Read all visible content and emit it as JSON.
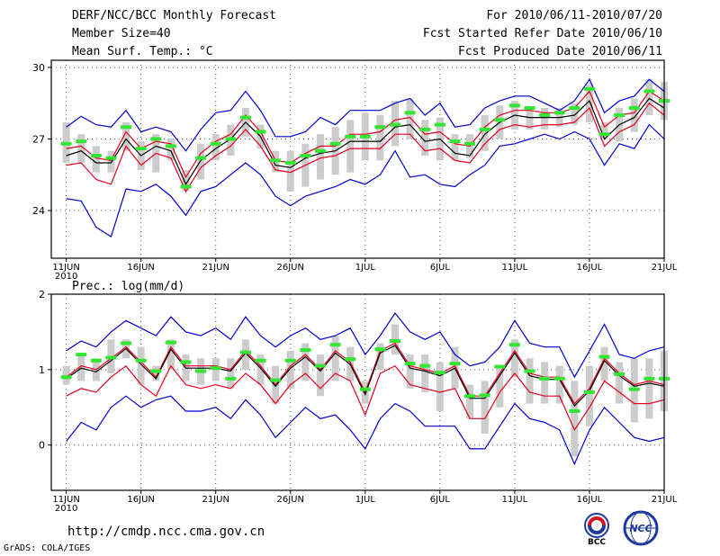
{
  "header": {
    "title": "DERF/NCC/BCC Monthly Forecast",
    "member_size": "Member Size=40",
    "panel1_label": "Mean Surf. Temp.: °C",
    "period": "For 2010/06/11-2010/07/20",
    "fcst_started": "Fcst Started Refer Date 2010/06/10",
    "fcst_produced": "Fcst Produced Date 2010/06/11"
  },
  "footer": {
    "url": "http://cmdp.ncc.cma.gov.cn",
    "grads": "GrADS: COLA/IGES",
    "logo_bcc": "BCC",
    "logo_ncc": "NCC"
  },
  "colors": {
    "mean": "#000000",
    "spread": "#e6001e",
    "extreme": "#0000d0",
    "box": "#cccccc",
    "marker": "#33e633"
  },
  "chart_data": [
    {
      "type": "line",
      "name": "temperature",
      "label": "Mean Surf. Temp.: °C",
      "x_tick_labels": [
        "11JUN",
        "16JUN",
        "21JUN",
        "26JUN",
        "1JUL",
        "6JUL",
        "11JUL",
        "16JUL",
        "21JUL"
      ],
      "x_tick_index": [
        0,
        5,
        10,
        15,
        20,
        25,
        30,
        35,
        40
      ],
      "year_label": "2010",
      "xlim": [
        -1,
        40
      ],
      "ylim": [
        22,
        30.3
      ],
      "yticks": [
        24,
        27,
        30
      ],
      "ytick_labels": [
        "24",
        "27",
        "30"
      ],
      "series": [
        {
          "name": "max",
          "values": [
            27.5,
            27.95,
            27.6,
            27.5,
            28.2,
            27.3,
            27.5,
            27.3,
            26.5,
            27.4,
            28.1,
            28.2,
            29.0,
            28.2,
            27.1,
            27.1,
            27.3,
            27.9,
            27.6,
            28.2,
            28.2,
            28.2,
            28.5,
            28.7,
            28.0,
            28.5,
            27.5,
            27.6,
            28.3,
            28.6,
            28.8,
            28.8,
            28.5,
            28.2,
            28.6,
            29.5,
            28.1,
            28.6,
            28.8,
            29.5,
            29.0
          ]
        },
        {
          "name": "mean_plus",
          "values": [
            26.6,
            26.7,
            26.2,
            26.1,
            27.3,
            26.6,
            26.9,
            26.8,
            25.4,
            26.4,
            26.9,
            27.2,
            28.0,
            27.3,
            26.1,
            26.0,
            26.4,
            26.7,
            26.7,
            27.2,
            27.2,
            27.3,
            27.8,
            27.9,
            27.2,
            27.3,
            26.8,
            26.7,
            27.5,
            28.0,
            28.2,
            28.2,
            28.1,
            28.1,
            28.3,
            29.0,
            27.5,
            28.0,
            28.1,
            29.0,
            28.6
          ]
        },
        {
          "name": "mean",
          "values": [
            26.3,
            26.5,
            26.0,
            26.0,
            27.0,
            26.3,
            26.7,
            26.5,
            25.1,
            26.1,
            26.6,
            27.0,
            27.7,
            27.1,
            25.9,
            25.8,
            26.2,
            26.4,
            26.5,
            26.9,
            26.9,
            26.9,
            27.5,
            27.6,
            26.9,
            27.0,
            26.4,
            26.3,
            27.2,
            27.7,
            28.0,
            27.9,
            27.9,
            27.9,
            28.0,
            28.6,
            27.0,
            27.6,
            27.9,
            28.7,
            28.3
          ]
        },
        {
          "name": "mean_minus",
          "values": [
            25.9,
            26.0,
            25.3,
            25.1,
            26.7,
            25.9,
            26.4,
            26.2,
            24.8,
            25.8,
            26.3,
            26.7,
            27.4,
            26.7,
            25.7,
            25.6,
            25.9,
            26.2,
            26.3,
            26.6,
            26.6,
            26.6,
            27.2,
            27.2,
            26.5,
            26.6,
            26.1,
            26.0,
            26.8,
            27.4,
            27.6,
            27.5,
            27.6,
            27.6,
            27.7,
            28.3,
            26.7,
            27.3,
            27.6,
            28.5,
            28.0
          ]
        },
        {
          "name": "min",
          "values": [
            24.5,
            24.4,
            23.3,
            22.9,
            24.9,
            24.8,
            25.1,
            24.6,
            23.8,
            24.8,
            25.0,
            25.5,
            26.0,
            25.5,
            24.6,
            24.2,
            24.6,
            24.8,
            25.0,
            25.3,
            25.1,
            25.5,
            26.5,
            25.4,
            25.5,
            25.1,
            25.0,
            25.5,
            25.9,
            26.7,
            26.8,
            27.0,
            27.2,
            27.0,
            27.3,
            27.0,
            25.9,
            26.8,
            26.6,
            27.6,
            27.0
          ]
        }
      ],
      "box_low": [
        26.0,
        26.0,
        25.6,
        25.6,
        26.5,
        25.7,
        25.6,
        26.1,
        24.8,
        25.3,
        26.1,
        26.3,
        27.1,
        26.6,
        25.6,
        24.8,
        25.0,
        25.3,
        25.5,
        25.6,
        26.1,
        26.1,
        26.7,
        27.0,
        26.3,
        26.1,
        26.1,
        26.2,
        26.5,
        27.0,
        27.4,
        27.4,
        27.4,
        27.5,
        27.6,
        27.7,
        27.0,
        26.9,
        27.3,
        28.0,
        27.8
      ],
      "box_high": [
        27.7,
        27.2,
        26.7,
        26.5,
        27.7,
        26.9,
        27.2,
        27.0,
        25.7,
        26.8,
        27.2,
        27.6,
        28.3,
        27.6,
        26.5,
        26.5,
        26.8,
        27.2,
        27.5,
        27.8,
        28.1,
        28.0,
        28.6,
        28.7,
        27.8,
        27.9,
        27.2,
        27.2,
        28.0,
        28.4,
        28.6,
        28.3,
        28.3,
        28.3,
        28.5,
        29.3,
        27.7,
        28.3,
        28.7,
        29.5,
        29.4
      ],
      "markers": [
        26.8,
        26.9,
        26.3,
        26.2,
        27.5,
        26.6,
        27.0,
        26.7,
        25.0,
        26.2,
        26.8,
        27.0,
        27.9,
        27.3,
        26.1,
        26.0,
        26.3,
        26.5,
        26.8,
        27.1,
        27.1,
        27.5,
        27.6,
        28.1,
        27.4,
        27.6,
        26.9,
        26.8,
        27.4,
        27.8,
        28.4,
        28.3,
        28.0,
        28.1,
        28.3,
        29.1,
        27.2,
        28.0,
        28.3,
        29.0,
        28.6
      ]
    },
    {
      "type": "line",
      "name": "precipitation",
      "label": "Prec.: log(mm/d)",
      "x_tick_labels": [
        "11JUN",
        "16JUN",
        "21JUN",
        "26JUN",
        "1JUL",
        "6JUL",
        "11JUL",
        "16JUL",
        "21JUL"
      ],
      "x_tick_index": [
        0,
        5,
        10,
        15,
        20,
        25,
        30,
        35,
        40
      ],
      "year_label": "2010",
      "xlim": [
        -1,
        40
      ],
      "ylim": [
        -0.6,
        2.0
      ],
      "yticks": [
        0,
        1,
        2
      ],
      "ytick_labels": [
        "0",
        "1",
        "2"
      ],
      "series": [
        {
          "name": "max",
          "values": [
            1.25,
            1.38,
            1.3,
            1.5,
            1.65,
            1.55,
            1.45,
            1.7,
            1.5,
            1.45,
            1.55,
            1.4,
            1.7,
            1.45,
            1.3,
            1.45,
            1.55,
            1.4,
            1.45,
            1.55,
            1.2,
            1.45,
            1.75,
            1.5,
            1.4,
            1.5,
            1.2,
            1.05,
            1.1,
            1.3,
            1.65,
            1.35,
            1.3,
            1.3,
            0.9,
            1.25,
            1.6,
            1.2,
            1.15,
            1.25,
            1.3
          ]
        },
        {
          "name": "mean_plus",
          "values": [
            0.9,
            1.05,
            1.0,
            1.15,
            1.3,
            1.1,
            0.9,
            1.3,
            1.05,
            1.05,
            1.05,
            1.0,
            1.25,
            1.05,
            0.8,
            1.05,
            1.2,
            1.0,
            1.25,
            1.1,
            0.7,
            1.25,
            1.35,
            1.05,
            1.0,
            0.95,
            1.05,
            0.65,
            0.65,
            0.95,
            1.25,
            0.95,
            0.9,
            0.9,
            0.55,
            0.75,
            1.15,
            0.95,
            0.8,
            0.85,
            0.8
          ]
        },
        {
          "name": "mean",
          "values": [
            0.88,
            1.02,
            0.97,
            1.12,
            1.28,
            1.07,
            0.88,
            1.27,
            1.02,
            1.02,
            1.02,
            0.98,
            1.22,
            1.02,
            0.78,
            1.02,
            1.17,
            0.98,
            1.22,
            1.07,
            0.67,
            1.22,
            1.32,
            1.02,
            0.98,
            0.92,
            1.02,
            0.62,
            0.62,
            0.92,
            1.22,
            0.92,
            0.87,
            0.87,
            0.52,
            0.72,
            1.12,
            0.92,
            0.78,
            0.82,
            0.78
          ]
        },
        {
          "name": "mean_minus",
          "values": [
            0.65,
            0.75,
            0.7,
            0.9,
            1.05,
            0.8,
            0.65,
            1.05,
            0.8,
            0.75,
            0.8,
            0.75,
            0.95,
            0.8,
            0.55,
            0.8,
            0.95,
            0.75,
            0.95,
            0.85,
            0.4,
            0.95,
            1.05,
            0.8,
            0.75,
            0.7,
            0.75,
            0.35,
            0.35,
            0.7,
            0.95,
            0.7,
            0.65,
            0.65,
            0.2,
            0.5,
            0.85,
            0.7,
            0.55,
            0.55,
            0.6
          ]
        },
        {
          "name": "min",
          "values": [
            0.05,
            0.3,
            0.2,
            0.5,
            0.65,
            0.5,
            0.6,
            0.65,
            0.45,
            0.45,
            0.5,
            0.35,
            0.6,
            0.4,
            0.1,
            0.3,
            0.5,
            0.35,
            0.4,
            0.2,
            -0.05,
            0.35,
            0.55,
            0.45,
            0.25,
            0.25,
            0.25,
            -0.05,
            -0.05,
            0.25,
            0.55,
            0.35,
            0.3,
            0.2,
            -0.25,
            0.2,
            0.5,
            0.3,
            0.1,
            0.05,
            0.1
          ]
        }
      ],
      "box_low": [
        0.8,
        0.85,
        0.85,
        0.95,
        1.15,
        0.8,
        0.85,
        1.0,
        0.85,
        0.8,
        0.85,
        0.75,
        1.0,
        0.8,
        0.55,
        0.75,
        0.85,
        0.65,
        0.85,
        0.85,
        0.55,
        1.0,
        1.2,
        0.75,
        0.7,
        0.45,
        0.75,
        0.35,
        0.15,
        0.5,
        0.9,
        0.55,
        0.55,
        0.55,
        -0.15,
        0.25,
        0.85,
        0.55,
        0.3,
        0.35,
        0.45
      ],
      "box_high": [
        1.05,
        1.2,
        1.15,
        1.4,
        1.4,
        1.3,
        1.05,
        1.4,
        1.2,
        1.15,
        1.15,
        1.15,
        1.4,
        1.2,
        1.05,
        1.25,
        1.35,
        1.2,
        1.45,
        1.3,
        0.85,
        1.35,
        1.6,
        1.2,
        1.2,
        1.1,
        1.3,
        0.8,
        0.85,
        1.05,
        1.4,
        1.15,
        1.1,
        1.05,
        0.85,
        1.05,
        1.3,
        1.1,
        1.15,
        1.15,
        1.25
      ],
      "markers": [
        0.9,
        1.2,
        1.12,
        1.16,
        1.35,
        1.12,
        0.98,
        1.36,
        1.1,
        0.98,
        1.02,
        0.88,
        1.23,
        1.12,
        0.86,
        1.12,
        1.26,
        1.05,
        1.33,
        1.14,
        0.74,
        1.27,
        1.38,
        1.08,
        1.05,
        0.96,
        1.08,
        0.65,
        0.66,
        1.04,
        1.33,
        0.98,
        0.88,
        0.88,
        0.45,
        0.7,
        1.17,
        0.94,
        0.74,
        0.88,
        0.88
      ]
    }
  ]
}
